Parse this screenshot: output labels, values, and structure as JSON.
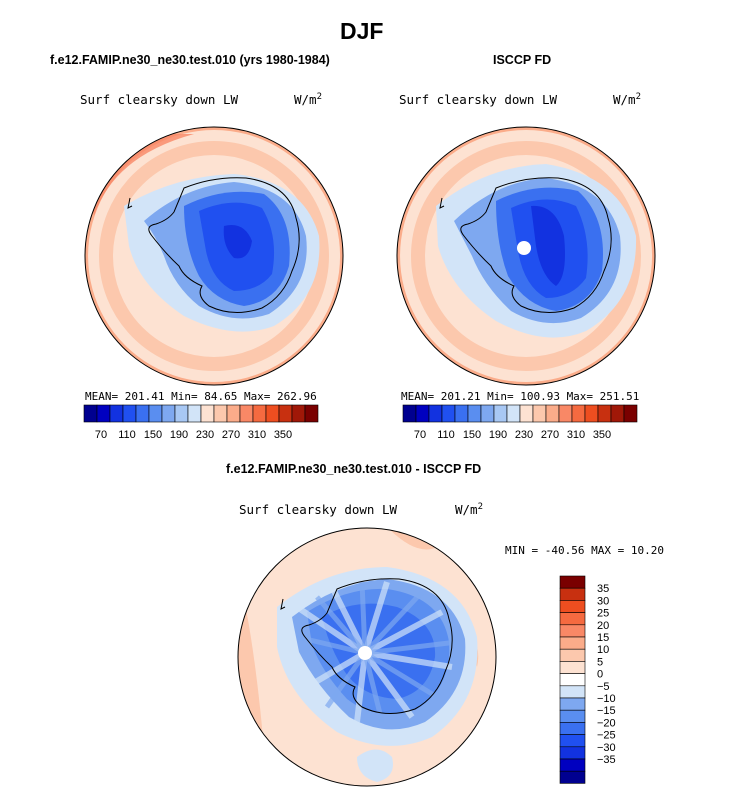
{
  "figure": {
    "title": "DJF"
  },
  "panels": [
    {
      "heading": "f.e12.FAMIP.ne30_ne30.test.010 (yrs 1980-1984)",
      "variable": "Surf clearsky down LW",
      "units_base": "W/m",
      "units_exp": "2",
      "stats": "MEAN= 201.41   Min=   84.65   Max=  262.96"
    },
    {
      "heading": "ISCCP FD",
      "variable": "Surf clearsky down LW",
      "units_base": "W/m",
      "units_exp": "2",
      "stats": "MEAN= 201.21   Min= 100.93   Max= 251.51"
    },
    {
      "heading": "f.e12.FAMIP.ne30_ne30.test.010 - ISCCP FD",
      "variable": "Surf clearsky down LW",
      "units_base": "W/m",
      "units_exp": "2",
      "stats": "MIN = -40.56 MAX =  10.20"
    }
  ],
  "colorbar_abs": {
    "colors": [
      "#000090",
      "#0000c0",
      "#1232e0",
      "#2050f0",
      "#3a70f0",
      "#5a8ef0",
      "#7ea8f0",
      "#a8c8f4",
      "#d2e4f8",
      "#fde2d2",
      "#fcc8ad",
      "#fbac8a",
      "#f98866",
      "#f56a40",
      "#ee4e20",
      "#c83010",
      "#a01808",
      "#7a0000"
    ],
    "tick_labels": [
      "70",
      "110",
      "150",
      "190",
      "230",
      "270",
      "310",
      "350"
    ]
  },
  "colorbar_diff": {
    "colors": [
      "#000090",
      "#0000c0",
      "#1232e0",
      "#2050f0",
      "#3a70f0",
      "#5a8ef0",
      "#7ea8f0",
      "#d2e4f8",
      "#ffffff",
      "#fde2d2",
      "#fcc8ad",
      "#fbac8a",
      "#f98866",
      "#f56a40",
      "#ee4e20",
      "#c83010",
      "#7a0000"
    ],
    "tick_labels": [
      "35",
      "30",
      "25",
      "20",
      "15",
      "10",
      "5",
      "0",
      "−5",
      "−10",
      "−15",
      "−20",
      "−25",
      "−30",
      "−35"
    ]
  },
  "map_colors": {
    "land_mask_line": "#000000",
    "pole_fill": "#ffffff"
  }
}
